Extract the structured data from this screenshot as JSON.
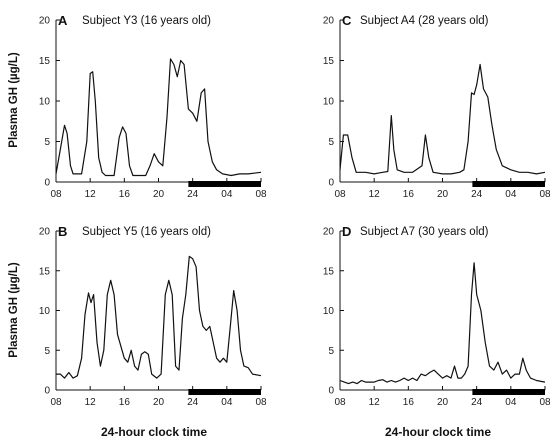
{
  "ylabel": "Plasma GH (µg/L)",
  "xlabel": "24-hour clock time",
  "chart_data": [
    {
      "type": "line",
      "panel": "A",
      "title": "Subject Y3 (16 years old)",
      "ylim": [
        0,
        20
      ],
      "yticks": [
        "0",
        "5",
        "10",
        "15",
        "20"
      ],
      "xlim": [
        0,
        24
      ],
      "xticks": [
        "08",
        "12",
        "16",
        "20",
        "24",
        "04",
        "08"
      ],
      "night_bar": [
        15.5,
        24
      ],
      "series": [
        {
          "values": [
            [
              0,
              1.0
            ],
            [
              0.5,
              4.0
            ],
            [
              1.0,
              7.0
            ],
            [
              1.3,
              6.0
            ],
            [
              1.7,
              2.0
            ],
            [
              2.0,
              1.0
            ],
            [
              3.0,
              1.0
            ],
            [
              3.6,
              5.0
            ],
            [
              4.0,
              13.4
            ],
            [
              4.3,
              13.6
            ],
            [
              4.6,
              10.0
            ],
            [
              5.0,
              3.0
            ],
            [
              5.4,
              1.2
            ],
            [
              5.8,
              0.8
            ],
            [
              6.8,
              0.8
            ],
            [
              7.4,
              5.5
            ],
            [
              7.8,
              6.8
            ],
            [
              8.2,
              6.0
            ],
            [
              8.6,
              2.0
            ],
            [
              9.0,
              0.8
            ],
            [
              10.5,
              0.8
            ],
            [
              11.0,
              2.0
            ],
            [
              11.5,
              3.5
            ],
            [
              12.0,
              2.5
            ],
            [
              12.5,
              2.0
            ],
            [
              13.0,
              8.0
            ],
            [
              13.4,
              15.2
            ],
            [
              13.8,
              14.5
            ],
            [
              14.2,
              13.0
            ],
            [
              14.6,
              15.0
            ],
            [
              15.0,
              14.5
            ],
            [
              15.5,
              9.0
            ],
            [
              16.0,
              8.5
            ],
            [
              16.5,
              7.5
            ],
            [
              17.0,
              11.0
            ],
            [
              17.4,
              11.5
            ],
            [
              17.8,
              5.0
            ],
            [
              18.3,
              2.5
            ],
            [
              18.8,
              1.5
            ],
            [
              19.5,
              1.0
            ],
            [
              20.5,
              0.8
            ],
            [
              21.5,
              1.0
            ],
            [
              22.5,
              1.0
            ],
            [
              24,
              1.2
            ]
          ]
        }
      ]
    },
    {
      "type": "line",
      "panel": "C",
      "title": "Subject A4 (28 years old)",
      "ylim": [
        0,
        20
      ],
      "yticks": [
        "0",
        "5",
        "10",
        "15",
        "20"
      ],
      "xlim": [
        0,
        24
      ],
      "xticks": [
        "08",
        "12",
        "16",
        "20",
        "24",
        "04",
        "08"
      ],
      "night_bar": [
        15.5,
        24
      ],
      "series": [
        {
          "values": [
            [
              0,
              1.5
            ],
            [
              0.4,
              5.8
            ],
            [
              0.9,
              5.8
            ],
            [
              1.4,
              3.0
            ],
            [
              1.9,
              1.2
            ],
            [
              3.0,
              1.2
            ],
            [
              4.0,
              1.0
            ],
            [
              5.0,
              1.2
            ],
            [
              5.6,
              1.3
            ],
            [
              6.0,
              8.2
            ],
            [
              6.3,
              4.0
            ],
            [
              6.7,
              1.5
            ],
            [
              7.5,
              1.2
            ],
            [
              8.5,
              1.2
            ],
            [
              9.6,
              2.0
            ],
            [
              10.0,
              5.8
            ],
            [
              10.4,
              3.0
            ],
            [
              10.9,
              1.2
            ],
            [
              12.0,
              1.0
            ],
            [
              13.0,
              1.0
            ],
            [
              14.0,
              1.2
            ],
            [
              14.5,
              1.5
            ],
            [
              15.0,
              5.0
            ],
            [
              15.4,
              11.0
            ],
            [
              15.7,
              10.8
            ],
            [
              16.0,
              12.0
            ],
            [
              16.4,
              14.5
            ],
            [
              16.8,
              11.5
            ],
            [
              17.3,
              10.5
            ],
            [
              17.8,
              7.0
            ],
            [
              18.3,
              4.0
            ],
            [
              19.0,
              2.0
            ],
            [
              20.0,
              1.5
            ],
            [
              21.0,
              1.2
            ],
            [
              22.0,
              1.2
            ],
            [
              23.0,
              1.0
            ],
            [
              24,
              1.2
            ]
          ]
        }
      ]
    },
    {
      "type": "line",
      "panel": "B",
      "title": "Subject Y5 (16 years old)",
      "ylim": [
        0,
        20
      ],
      "yticks": [
        "0",
        "5",
        "10",
        "15",
        "20"
      ],
      "xlim": [
        0,
        24
      ],
      "xticks": [
        "08",
        "12",
        "16",
        "20",
        "24",
        "04",
        "08"
      ],
      "night_bar": [
        15.5,
        24
      ],
      "series": [
        {
          "values": [
            [
              0,
              2.0
            ],
            [
              0.5,
              2.0
            ],
            [
              1.0,
              1.5
            ],
            [
              1.5,
              2.2
            ],
            [
              2.0,
              1.5
            ],
            [
              2.5,
              1.8
            ],
            [
              3.0,
              4.0
            ],
            [
              3.4,
              9.5
            ],
            [
              3.8,
              12.2
            ],
            [
              4.1,
              11.0
            ],
            [
              4.4,
              12.0
            ],
            [
              4.8,
              6.0
            ],
            [
              5.2,
              3.0
            ],
            [
              5.6,
              5.0
            ],
            [
              6.0,
              12.0
            ],
            [
              6.4,
              13.8
            ],
            [
              6.8,
              12.0
            ],
            [
              7.2,
              7.0
            ],
            [
              7.6,
              5.5
            ],
            [
              8.0,
              4.0
            ],
            [
              8.4,
              3.5
            ],
            [
              8.8,
              5.0
            ],
            [
              9.2,
              3.0
            ],
            [
              9.6,
              2.5
            ],
            [
              10.0,
              4.5
            ],
            [
              10.4,
              4.8
            ],
            [
              10.8,
              4.5
            ],
            [
              11.2,
              2.0
            ],
            [
              11.8,
              1.5
            ],
            [
              12.3,
              2.0
            ],
            [
              12.8,
              12.0
            ],
            [
              13.2,
              13.8
            ],
            [
              13.6,
              12.0
            ],
            [
              14.0,
              3.0
            ],
            [
              14.4,
              2.5
            ],
            [
              14.8,
              9.0
            ],
            [
              15.2,
              12.0
            ],
            [
              15.6,
              16.8
            ],
            [
              16.0,
              16.5
            ],
            [
              16.4,
              15.5
            ],
            [
              16.8,
              10.0
            ],
            [
              17.2,
              8.0
            ],
            [
              17.6,
              7.5
            ],
            [
              18.0,
              8.0
            ],
            [
              18.4,
              6.0
            ],
            [
              18.8,
              4.0
            ],
            [
              19.2,
              3.5
            ],
            [
              19.6,
              4.0
            ],
            [
              20.0,
              3.5
            ],
            [
              20.4,
              8.0
            ],
            [
              20.8,
              12.5
            ],
            [
              21.2,
              10.0
            ],
            [
              21.6,
              5.0
            ],
            [
              22.0,
              3.0
            ],
            [
              22.5,
              2.8
            ],
            [
              23.0,
              2.0
            ],
            [
              24,
              1.8
            ]
          ]
        }
      ]
    },
    {
      "type": "line",
      "panel": "D",
      "title": "Subject A7 (30 years old)",
      "ylim": [
        0,
        20
      ],
      "yticks": [
        "0",
        "5",
        "10",
        "15",
        "20"
      ],
      "xlim": [
        0,
        24
      ],
      "xticks": [
        "08",
        "12",
        "16",
        "20",
        "24",
        "04",
        "08"
      ],
      "night_bar": [
        15.5,
        24
      ],
      "series": [
        {
          "values": [
            [
              0,
              1.2
            ],
            [
              0.5,
              1.0
            ],
            [
              1.0,
              0.8
            ],
            [
              1.5,
              1.0
            ],
            [
              2.0,
              0.8
            ],
            [
              2.5,
              1.2
            ],
            [
              3.0,
              1.0
            ],
            [
              3.5,
              1.0
            ],
            [
              4.0,
              1.0
            ],
            [
              4.5,
              1.2
            ],
            [
              5.0,
              1.3
            ],
            [
              5.5,
              1.0
            ],
            [
              6.0,
              1.2
            ],
            [
              6.5,
              1.0
            ],
            [
              7.0,
              1.2
            ],
            [
              7.5,
              1.5
            ],
            [
              8.0,
              1.2
            ],
            [
              8.5,
              1.5
            ],
            [
              9.0,
              1.2
            ],
            [
              9.5,
              2.0
            ],
            [
              10.0,
              1.8
            ],
            [
              10.5,
              2.2
            ],
            [
              11.0,
              2.5
            ],
            [
              11.5,
              2.0
            ],
            [
              12.0,
              1.5
            ],
            [
              12.5,
              1.8
            ],
            [
              13.0,
              1.5
            ],
            [
              13.4,
              3.0
            ],
            [
              13.8,
              1.5
            ],
            [
              14.2,
              1.5
            ],
            [
              14.6,
              2.0
            ],
            [
              15.0,
              3.0
            ],
            [
              15.4,
              12.0
            ],
            [
              15.7,
              16.0
            ],
            [
              16.0,
              12.0
            ],
            [
              16.5,
              10.0
            ],
            [
              17.0,
              6.0
            ],
            [
              17.5,
              3.0
            ],
            [
              18.0,
              2.5
            ],
            [
              18.5,
              3.5
            ],
            [
              19.0,
              2.0
            ],
            [
              19.5,
              2.5
            ],
            [
              20.0,
              1.5
            ],
            [
              20.5,
              2.0
            ],
            [
              21.0,
              2.0
            ],
            [
              21.4,
              4.0
            ],
            [
              21.8,
              2.5
            ],
            [
              22.3,
              1.5
            ],
            [
              23.0,
              1.2
            ],
            [
              24,
              1.0
            ]
          ]
        }
      ]
    }
  ]
}
